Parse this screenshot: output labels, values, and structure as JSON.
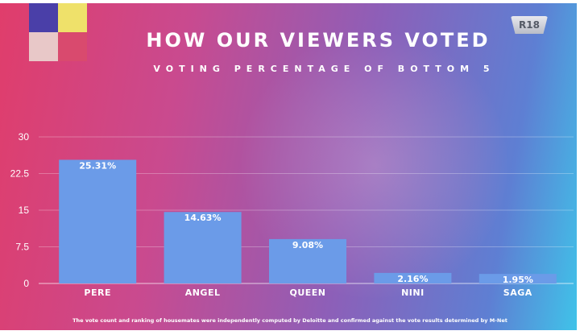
{
  "badge": "R18",
  "footer": "The vote count and ranking of housemates were independently computed by Deloitte and confirmed against the vote results determined by M-Net",
  "colors": {
    "bar": "#6b9be8",
    "gridline": "#ffffff"
  },
  "chart_data": {
    "type": "bar",
    "title": "HOW OUR VIEWERS VOTED",
    "subtitle": "VOTING PERCENTAGE OF BOTTOM 5",
    "xlabel": "",
    "ylabel": "",
    "ylim": [
      0,
      30
    ],
    "yticks": [
      "30",
      "22.5",
      "15",
      "7.5",
      "0"
    ],
    "ytick_values": [
      30,
      22.5,
      15,
      7.5,
      0
    ],
    "categories": [
      "PERE",
      "ANGEL",
      "QUEEN",
      "NINI",
      "SAGA"
    ],
    "values": [
      25.31,
      14.63,
      9.08,
      2.16,
      1.95
    ],
    "data_labels": [
      "25.31%",
      "14.63%",
      "9.08%",
      "2.16%",
      "1.95%"
    ],
    "grid": "horizontal",
    "legend": "none"
  }
}
